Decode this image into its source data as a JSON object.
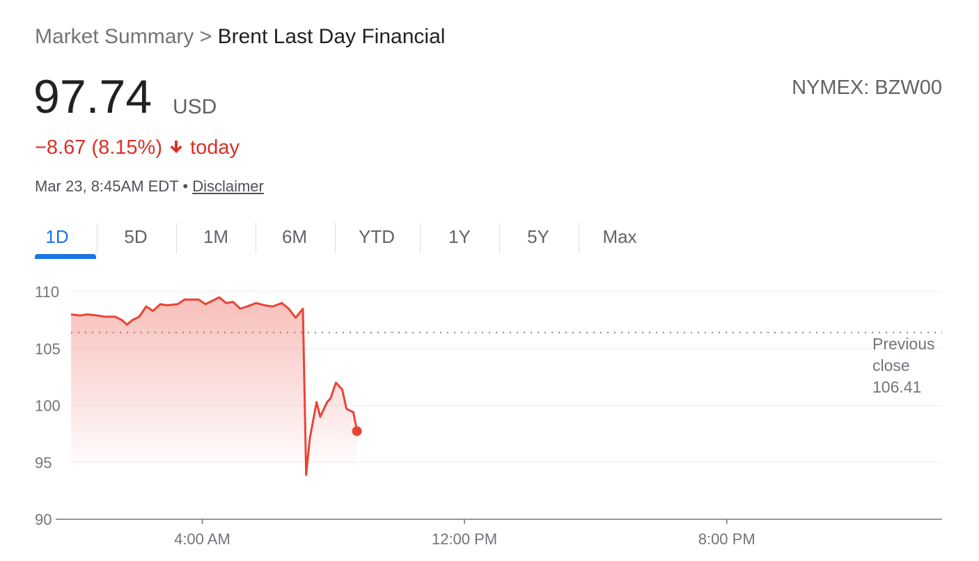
{
  "header": {
    "breadcrumb_root": "Market Summary",
    "breadcrumb_separator": ">",
    "instrument": "Brent Last Day Financial",
    "price": "97.74",
    "currency": "USD",
    "change": "−8.67 (8.15%)",
    "change_period": "today",
    "timestamp": "Mar 23, 8:45AM EDT",
    "timestamp_separator": "•",
    "disclaimer": "Disclaimer",
    "exchange": "NYMEX: BZW00"
  },
  "tabs": {
    "items": [
      "1D",
      "5D",
      "1M",
      "6M",
      "YTD",
      "1Y",
      "5Y",
      "Max"
    ],
    "selected": "1D"
  },
  "chart_data": {
    "type": "line",
    "x": [
      0,
      0.28,
      0.49,
      0.81,
      1.02,
      1.34,
      1.55,
      1.7,
      1.87,
      2.08,
      2.29,
      2.5,
      2.72,
      2.93,
      3.25,
      3.46,
      3.89,
      4.1,
      4.31,
      4.52,
      4.73,
      4.94,
      5.16,
      5.37,
      5.64,
      5.9,
      6.15,
      6.43,
      6.64,
      6.85,
      7.07,
      7.17,
      7.28,
      7.49,
      7.6,
      7.81,
      7.91,
      8.08,
      8.27,
      8.4,
      8.61,
      8.72
    ],
    "series": [
      {
        "name": "Brent Last Day Financial",
        "color": "#ea4335",
        "values": [
          108.0,
          107.9,
          108.0,
          107.9,
          107.8,
          107.8,
          107.5,
          107.1,
          107.5,
          107.8,
          108.7,
          108.3,
          108.9,
          108.8,
          108.9,
          109.3,
          109.3,
          108.9,
          109.2,
          109.5,
          109.0,
          109.1,
          108.5,
          108.7,
          109.0,
          108.8,
          108.7,
          109.0,
          108.5,
          107.7,
          108.5,
          93.9,
          97.1,
          100.3,
          99.0,
          100.3,
          100.6,
          102.0,
          101.4,
          99.7,
          99.4,
          97.74
        ]
      }
    ],
    "xlim": [
      -0.47,
      26.57
    ],
    "xticks": [
      {
        "value": 4,
        "label": "4:00 AM"
      },
      {
        "value": 12,
        "label": "12:00 PM"
      },
      {
        "value": 20,
        "label": "8:00 PM"
      }
    ],
    "ylim": [
      90,
      110
    ],
    "yticks": [
      90,
      95,
      100,
      105,
      110
    ],
    "grid": true,
    "reference_line": {
      "label": "Previous close",
      "value": 106.41
    }
  }
}
